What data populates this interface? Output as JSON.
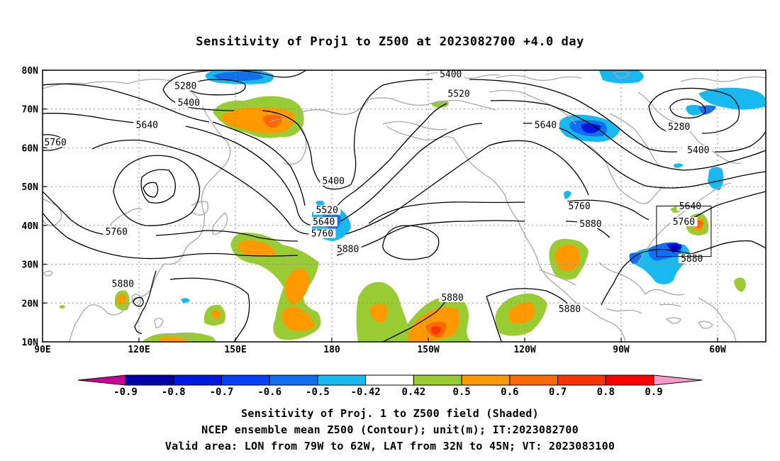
{
  "title": "Sensitivity of Proj1 to Z500 at 2023082700 +4.0 day",
  "captions": [
    "Sensitivity of Proj. 1 to Z500 field (Shaded)",
    "NCEP ensemble mean Z500 (Contour); unit(m); IT:2023082700",
    "Valid area: LON from 79W to 62W, LAT from 32N to 45N; VT: 2023083100"
  ],
  "axes": {
    "x_ticks": [
      {
        "lon": 90,
        "label": "90E"
      },
      {
        "lon": 120,
        "label": "120E"
      },
      {
        "lon": 150,
        "label": "150E"
      },
      {
        "lon": 180,
        "label": "180"
      },
      {
        "lon": 210,
        "label": "150W"
      },
      {
        "lon": 240,
        "label": "120W"
      },
      {
        "lon": 270,
        "label": "90W"
      },
      {
        "lon": 300,
        "label": "60W"
      }
    ],
    "y_ticks": [
      {
        "lat": 10,
        "label": "10N"
      },
      {
        "lat": 20,
        "label": "20N"
      },
      {
        "lat": 30,
        "label": "30N"
      },
      {
        "lat": 40,
        "label": "40N"
      },
      {
        "lat": 50,
        "label": "50N"
      },
      {
        "lat": 60,
        "label": "60N"
      },
      {
        "lat": 70,
        "label": "70N"
      },
      {
        "lat": 80,
        "label": "80N"
      }
    ],
    "lon_range": [
      90,
      315
    ],
    "lat_range": [
      10,
      80
    ],
    "grid": true
  },
  "valid_box": {
    "lon_min": 281,
    "lon_max": 298,
    "lat_min": 32,
    "lat_max": 45
  },
  "colorbar": {
    "labels": [
      "-0.9",
      "-0.8",
      "-0.7",
      "-0.6",
      "-0.5",
      "-0.42",
      "0.42",
      "0.5",
      "0.6",
      "0.7",
      "0.8",
      "0.9"
    ],
    "colors": [
      "#0000a8",
      "#0018e0",
      "#0840ff",
      "#1070f0",
      "#18b8f0",
      "#ffffff",
      "#99cc33",
      "#ff9900",
      "#ff6a00",
      "#ff3300",
      "#ff0000"
    ],
    "low_extend_color": "#cc0099",
    "high_extend_color": "#ff99cc"
  },
  "contour_labels": [
    {
      "text": "5280",
      "lon": 134.5,
      "lat": 75.5
    },
    {
      "text": "5400",
      "lon": 135.5,
      "lat": 71.2
    },
    {
      "text": "5640",
      "lon": 122.5,
      "lat": 65.5
    },
    {
      "text": "5760",
      "lon": 94,
      "lat": 61
    },
    {
      "text": "5760",
      "lon": 113,
      "lat": 38
    },
    {
      "text": "5880",
      "lon": 115,
      "lat": 24.5
    },
    {
      "text": "5400",
      "lon": 217,
      "lat": 78.5
    },
    {
      "text": "5520",
      "lon": 219.5,
      "lat": 73.5
    },
    {
      "text": "5640",
      "lon": 246.5,
      "lat": 65.5
    },
    {
      "text": "5400",
      "lon": 180.5,
      "lat": 51
    },
    {
      "text": "5520",
      "lon": 178.5,
      "lat": 43.5
    },
    {
      "text": "5640",
      "lon": 177.5,
      "lat": 40.5
    },
    {
      "text": "5760",
      "lon": 177,
      "lat": 37.5
    },
    {
      "text": "5880",
      "lon": 185,
      "lat": 33.5
    },
    {
      "text": "5760",
      "lon": 257,
      "lat": 44.5
    },
    {
      "text": "5880",
      "lon": 260.5,
      "lat": 40
    },
    {
      "text": "5880",
      "lon": 217.5,
      "lat": 21
    },
    {
      "text": "5880",
      "lon": 254,
      "lat": 18
    },
    {
      "text": "5280",
      "lon": 288,
      "lat": 65
    },
    {
      "text": "5400",
      "lon": 294,
      "lat": 59
    },
    {
      "text": "5640",
      "lon": 291.5,
      "lat": 44.5
    },
    {
      "text": "5760",
      "lon": 289.5,
      "lat": 40.5
    },
    {
      "text": "5880",
      "lon": 292,
      "lat": 31
    }
  ]
}
